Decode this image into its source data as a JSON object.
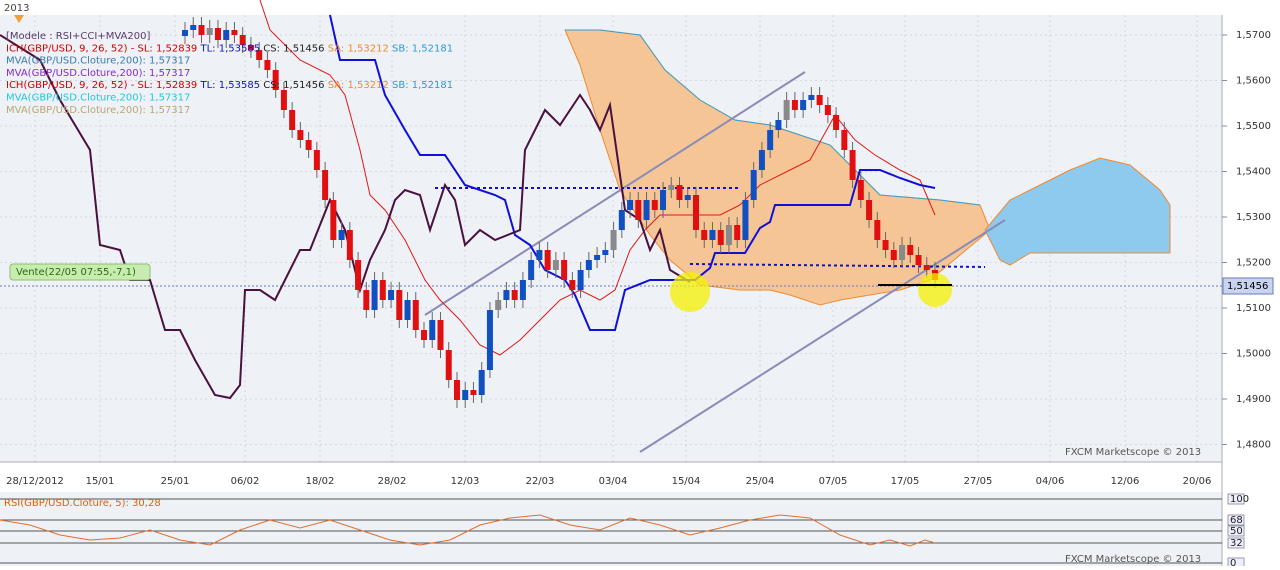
{
  "header": {
    "year": "2013"
  },
  "legend": [
    [
      {
        "text": "[Modele : RSI+CCI+MVA200]",
        "color": "#5a3a6e"
      }
    ],
    [
      {
        "text": "ICH(GBP/USD, 9, 26, 52) -  SL: 1,52839",
        "color": "#d40000"
      },
      {
        "text": "TL: 1,53585",
        "color": "#1010c8"
      },
      {
        "text": "CS: 1,51456",
        "color": "#222222"
      },
      {
        "text": "SA: 1,53212",
        "color": "#f08a30"
      },
      {
        "text": "SB: 1,52181",
        "color": "#2a9ad8"
      }
    ],
    [
      {
        "text": "MVA(GBP/USD.Cloture,200): 1,57317",
        "color": "#3a7ab0"
      }
    ],
    [
      {
        "text": "MVA(GBP/USD.Cloture,200): 1,57317",
        "color": "#8a2ad0"
      }
    ],
    [
      {
        "text": "ICH(GBP/USD, 9, 26, 52) -  SL: 1,52839",
        "color": "#d40000"
      },
      {
        "text": "TL: 1,53585",
        "color": "#1010c8"
      },
      {
        "text": "CS: 1,51456",
        "color": "#222222"
      },
      {
        "text": "SA: 1,53212",
        "color": "#f08a30"
      },
      {
        "text": "SB: 1,52181",
        "color": "#2a9ad8"
      }
    ],
    [
      {
        "text": "MVA(GBP/USD.Cloture,200): 1,57317",
        "color": "#20c8e0"
      }
    ],
    [
      {
        "text": "MVA(GBP/USD.Cloture,200): 1,57317",
        "color": "#b8a878"
      }
    ]
  ],
  "price_axis": {
    "labels": [
      "1,5700",
      "1,5600",
      "1,5500",
      "1,5400",
      "1,5300",
      "1,5200",
      "1,5100",
      "1,5000",
      "1,4900",
      "1,4800"
    ],
    "current": "1,51456"
  },
  "date_axis": [
    "28/12/2012",
    "15/01",
    "25/01",
    "06/02",
    "18/02",
    "28/02",
    "12/03",
    "22/03",
    "03/04",
    "15/04",
    "25/04",
    "07/05",
    "17/05",
    "27/05",
    "04/06",
    "12/06",
    "20/06"
  ],
  "signal": "Vente(22/05 07:55,-7,1)",
  "watermark": "FXCM Marketscope © 2013",
  "rsi_panel": {
    "legend": "RSI(GBP/USD.Cloture, 5): 30,28",
    "levels": [
      "100",
      "68",
      "50",
      "32",
      "0"
    ]
  }
}
